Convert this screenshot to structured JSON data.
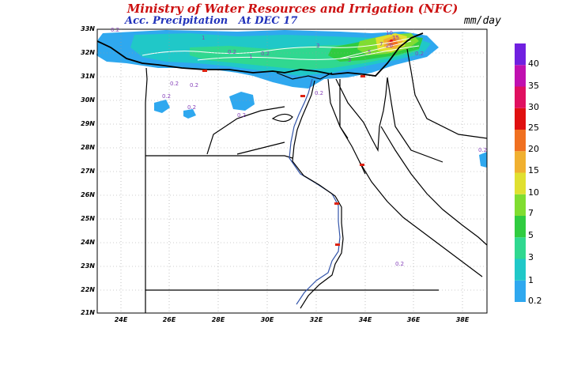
{
  "title": "Ministry of Water Resources and Irrigation (NFC)",
  "subtitle": "Acc. Precipitation",
  "date_label": "At DEC 17",
  "unit": "mm/day",
  "colors": {
    "title": "#cc1111",
    "subtitle": "#2233bb",
    "unit": "#000000",
    "land_outline": "#000000",
    "grid": "#9a9a9a"
  },
  "lat_labels": [
    "33N",
    "32N",
    "31N",
    "30N",
    "29N",
    "28N",
    "27N",
    "26N",
    "25N",
    "24N",
    "23N",
    "22N",
    "21N"
  ],
  "lon_labels": [
    "24E",
    "26E",
    "28E",
    "30E",
    "32E",
    "34E",
    "36E",
    "38E"
  ],
  "legend": {
    "levels": [
      "0.2",
      "1",
      "3",
      "5",
      "7",
      "10",
      "15",
      "20",
      "25",
      "30",
      "35",
      "40"
    ],
    "colors": [
      "#2fa8ef",
      "#20c8c8",
      "#30d890",
      "#30cc40",
      "#80dd30",
      "#e0e030",
      "#f0b030",
      "#f07020",
      "#e01010",
      "#e01060",
      "#c010b0",
      "#7020e0"
    ]
  },
  "contour_labels": [
    "0.2",
    "0.2",
    "0.2",
    "0.2",
    "0.2",
    "0.2",
    "0.2",
    "0.2",
    "0.2",
    "1",
    "1",
    "3",
    "3",
    "5",
    "7",
    "10",
    "15",
    "20",
    "0.2",
    "0.2",
    "0.2"
  ]
}
